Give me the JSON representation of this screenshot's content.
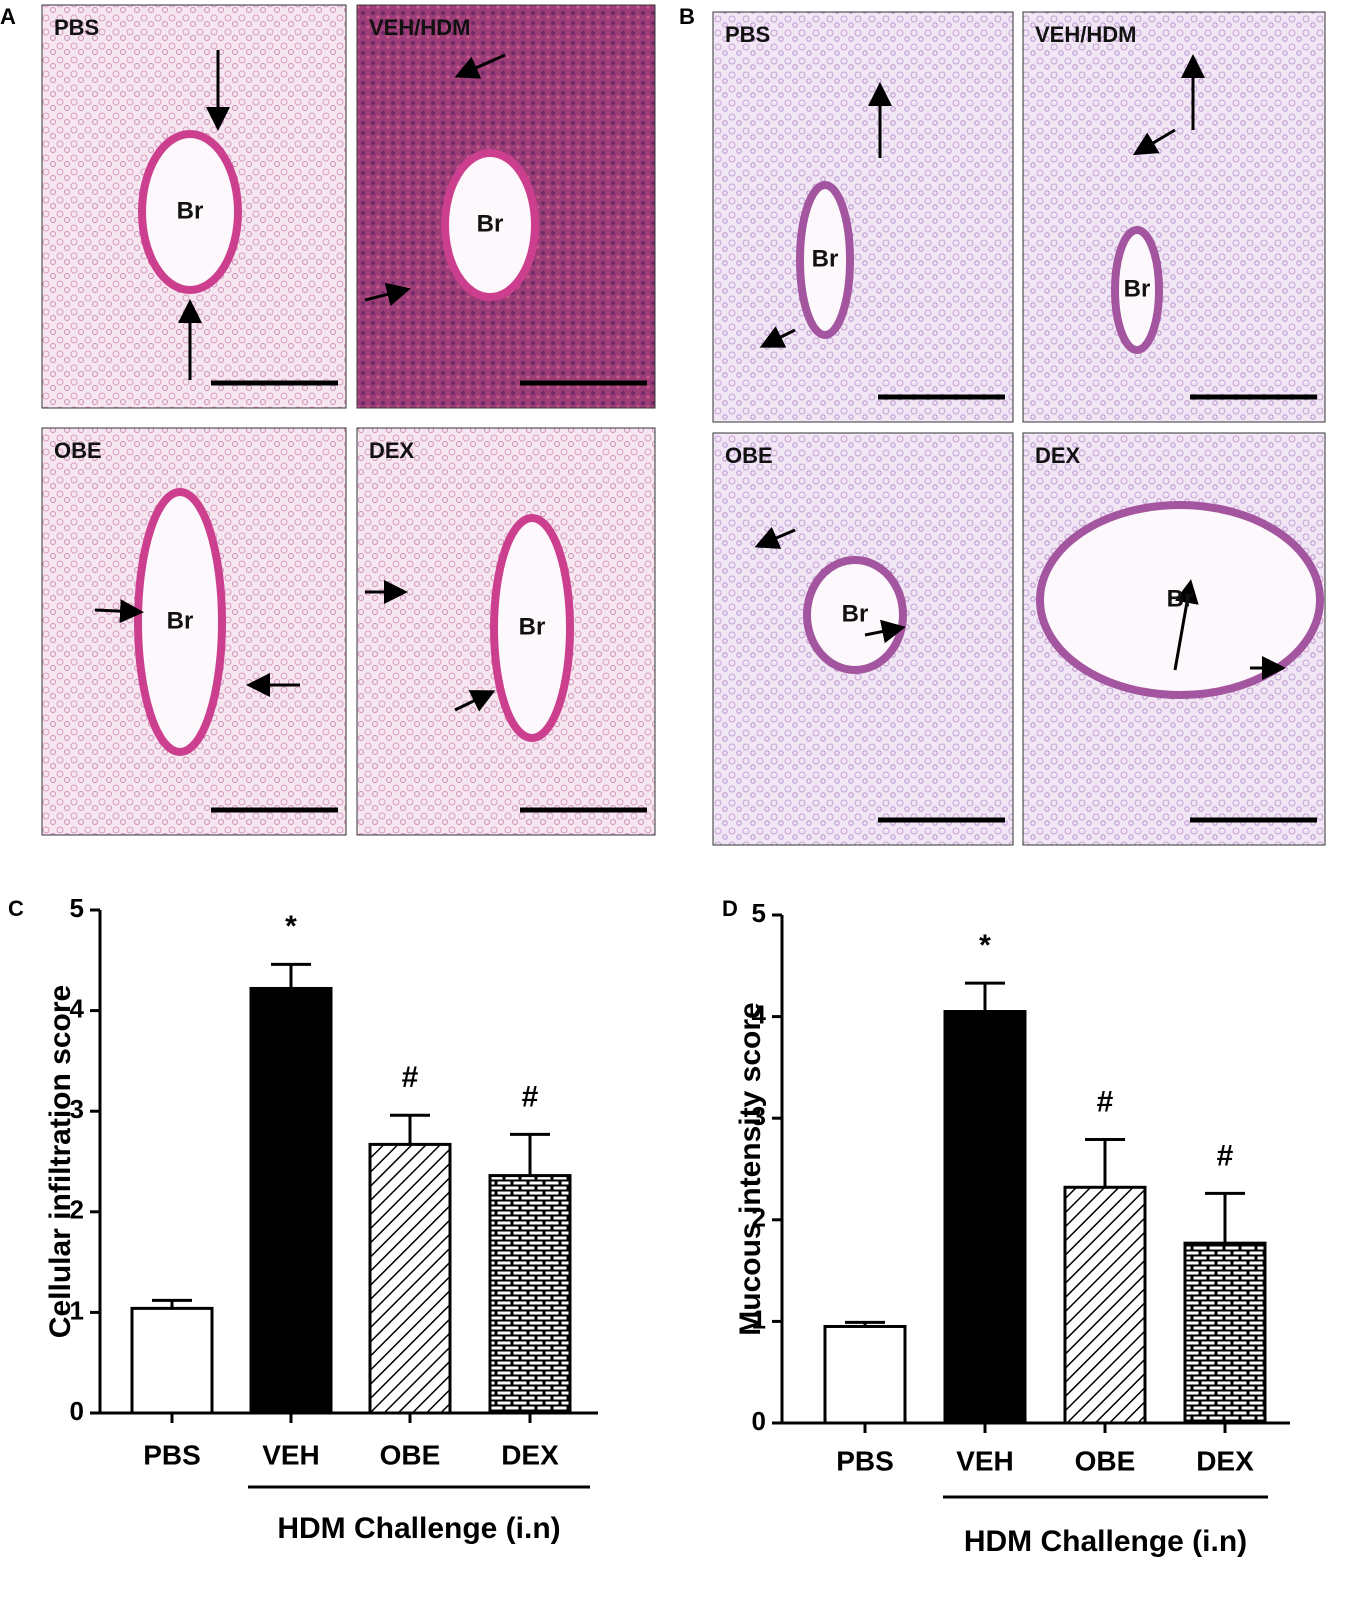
{
  "panels": [
    {
      "letter": "A",
      "images": [
        {
          "label": "PBS",
          "lumen": "Br"
        },
        {
          "label": "VEH/HDM",
          "lumen": "Br"
        },
        {
          "label": "OBE",
          "lumen": "Br"
        },
        {
          "label": "DEX",
          "lumen": "Br"
        }
      ]
    },
    {
      "letter": "B",
      "images": [
        {
          "label": "PBS",
          "lumen": "Br"
        },
        {
          "label": "VEH/HDM",
          "lumen": "Br"
        },
        {
          "label": "OBE",
          "lumen": "Br"
        },
        {
          "label": "DEX",
          "lumen": "Br"
        }
      ]
    }
  ],
  "chart_data": [
    {
      "type": "bar",
      "letter": "C",
      "y_label": "Cellular infiltration score",
      "categories": [
        "PBS",
        "VEH",
        "OBE",
        "DEX"
      ],
      "values": [
        1.04,
        4.22,
        2.67,
        2.36
      ],
      "errors": [
        0.08,
        0.24,
        0.29,
        0.41
      ],
      "colors": [
        "#ffffff",
        "#000000",
        "#ffffff",
        "#ffffff"
      ],
      "patterns": [
        "none",
        "none",
        "diagonal",
        "brick"
      ],
      "significance": [
        null,
        "*",
        "#",
        "#"
      ],
      "group_label": "HDM Challenge (i.n)",
      "ylim": [
        0,
        5
      ],
      "yticks": [
        0,
        1,
        2,
        3,
        4,
        5
      ]
    },
    {
      "type": "bar",
      "letter": "D",
      "y_label": "Mucous intensity score",
      "categories": [
        "PBS",
        "VEH",
        "OBE",
        "DEX"
      ],
      "values": [
        0.95,
        4.05,
        2.32,
        1.77
      ],
      "errors": [
        0.04,
        0.28,
        0.47,
        0.49
      ],
      "colors": [
        "#ffffff",
        "#000000",
        "#ffffff",
        "#ffffff"
      ],
      "patterns": [
        "none",
        "none",
        "diagonal",
        "brick"
      ],
      "significance": [
        null,
        "*",
        "#",
        "#"
      ],
      "group_label": "HDM Challenge (i.n)",
      "ylim": [
        0,
        5
      ],
      "yticks": [
        0,
        1,
        2,
        3,
        4,
        5
      ]
    }
  ]
}
